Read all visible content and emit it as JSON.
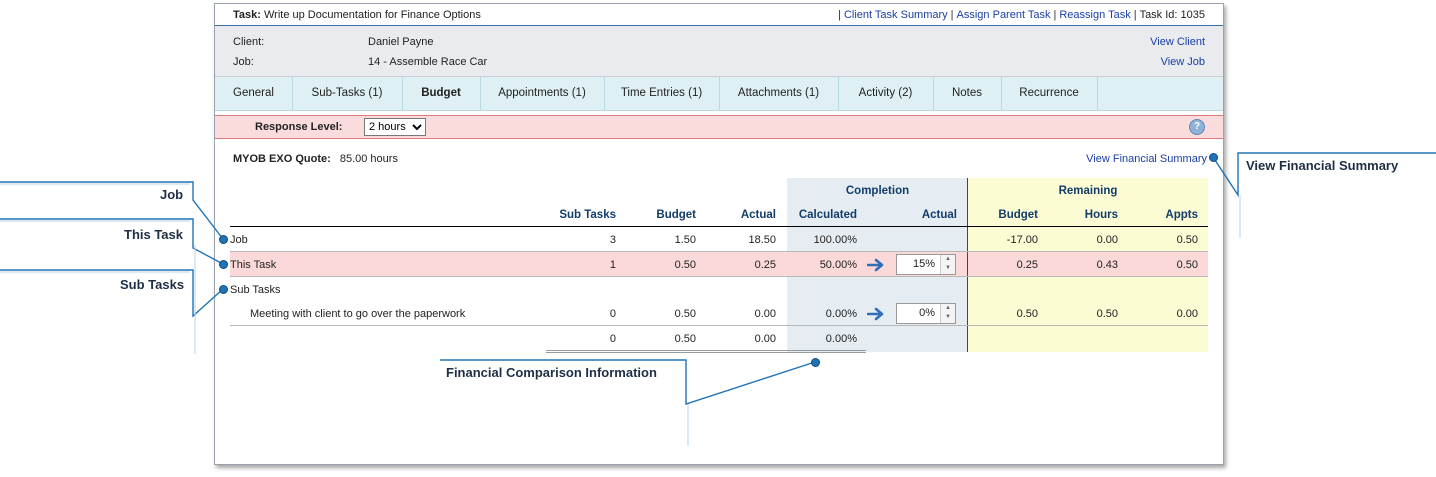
{
  "task": {
    "label": "Task",
    "colon": ":",
    "title": "Write up Documentation for Finance Options",
    "links": [
      "Client Task Summary",
      "Assign Parent Task",
      "Reassign Task"
    ],
    "pipe": "|",
    "task_id": "Task Id: 1035"
  },
  "info": {
    "client_label": "Client:",
    "client_value": "Daniel Payne",
    "job_label": "Job:",
    "job_value": "14 - Assemble Race Car",
    "view_client": "View Client",
    "view_job": "View Job"
  },
  "tabs": [
    "General",
    "Sub-Tasks (1)",
    "Budget",
    "Appointments (1)",
    "Time Entries (1)",
    "Attachments (1)",
    "Activity (2)",
    "Notes",
    "Recurrence"
  ],
  "active_tab": "Budget",
  "response": {
    "label": "Response Level:",
    "selected": "2 hours",
    "help_icon": "?"
  },
  "quote": {
    "label": "MYOB EXO Quote:",
    "value": "85.00 hours"
  },
  "view_financial_summary": "View Financial Summary",
  "table": {
    "group_headers": {
      "completion": "Completion",
      "remaining": "Remaining"
    },
    "headers": [
      "Sub Tasks",
      "Budget",
      "Actual",
      "Calculated",
      "Actual",
      "Budget",
      "Hours",
      "Appts"
    ],
    "rows": {
      "job": {
        "name": "Job",
        "sub_tasks": "3",
        "budget": "1.50",
        "actual": "18.50",
        "calculated": "100.00%",
        "r_budget": "-17.00",
        "r_hours": "0.00",
        "r_appts": "0.50"
      },
      "this_task": {
        "name": "This Task",
        "sub_tasks": "1",
        "budget": "0.50",
        "actual": "0.25",
        "calculated": "50.00%",
        "completion_actual": "15%",
        "r_budget": "0.25",
        "r_hours": "0.43",
        "r_appts": "0.50"
      },
      "sub_tasks_label": "Sub Tasks",
      "subtask": {
        "name": "Meeting with client to go over the paperwork",
        "sub_tasks": "0",
        "budget": "0.50",
        "actual": "0.00",
        "calculated": "0.00%",
        "completion_actual": "0%",
        "r_budget": "0.50",
        "r_hours": "0.50",
        "r_appts": "0.00"
      },
      "total": {
        "sub_tasks": "0",
        "budget": "0.50",
        "actual": "0.00",
        "calculated": "0.00%"
      }
    }
  },
  "callouts": {
    "job": "Job",
    "this_task": "This Task",
    "sub_tasks": "Sub Tasks",
    "view_financial_summary": "View Financial Summary",
    "financial_comparison": "Financial Comparison Information"
  },
  "colors": {
    "accent": "#1a3fa6",
    "response_bg": "#fbdcdc",
    "completion_bg": "#e6edf2",
    "remaining_bg": "#fbfbd4",
    "this_task_row": "#fbd9d9",
    "callout_line": "#1f73b7"
  }
}
